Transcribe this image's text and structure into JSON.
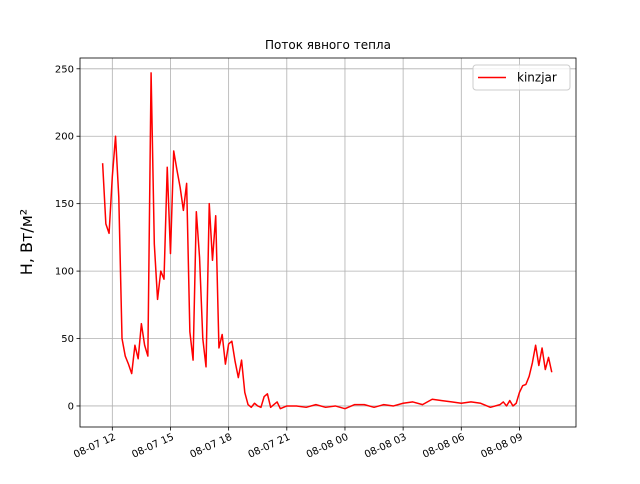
{
  "chart_data": {
    "type": "line",
    "title": "Поток явного тепла",
    "y_label": "H, Вт/м²",
    "x": [
      "08-07 11:30",
      "08-07 11:40",
      "08-07 11:50",
      "08-07 12:00",
      "08-07 12:10",
      "08-07 12:20",
      "08-07 12:30",
      "08-07 12:40",
      "08-07 12:50",
      "08-07 13:00",
      "08-07 13:10",
      "08-07 13:20",
      "08-07 13:30",
      "08-07 13:40",
      "08-07 13:50",
      "08-07 14:00",
      "08-07 14:10",
      "08-07 14:20",
      "08-07 14:30",
      "08-07 14:40",
      "08-07 14:50",
      "08-07 15:00",
      "08-07 15:10",
      "08-07 15:20",
      "08-07 15:30",
      "08-07 15:40",
      "08-07 15:50",
      "08-07 16:00",
      "08-07 16:10",
      "08-07 16:20",
      "08-07 16:30",
      "08-07 16:40",
      "08-07 16:50",
      "08-07 17:00",
      "08-07 17:10",
      "08-07 17:20",
      "08-07 17:30",
      "08-07 17:40",
      "08-07 17:50",
      "08-07 18:00",
      "08-07 18:10",
      "08-07 18:20",
      "08-07 18:30",
      "08-07 18:40",
      "08-07 18:50",
      "08-07 19:00",
      "08-07 19:10",
      "08-07 19:20",
      "08-07 19:30",
      "08-07 19:40",
      "08-07 19:50",
      "08-07 20:00",
      "08-07 20:10",
      "08-07 20:20",
      "08-07 20:30",
      "08-07 20:40",
      "08-07 21:00",
      "08-07 21:30",
      "08-07 22:00",
      "08-07 22:30",
      "08-07 23:00",
      "08-07 23:30",
      "08-08 00:00",
      "08-08 00:30",
      "08-08 01:00",
      "08-08 01:30",
      "08-08 02:00",
      "08-08 02:30",
      "08-08 03:00",
      "08-08 03:30",
      "08-08 04:00",
      "08-08 04:30",
      "08-08 05:00",
      "08-08 05:30",
      "08-08 06:00",
      "08-08 06:30",
      "08-08 07:00",
      "08-08 07:30",
      "08-08 08:00",
      "08-08 08:10",
      "08-08 08:20",
      "08-08 08:30",
      "08-08 08:40",
      "08-08 08:50",
      "08-08 09:00",
      "08-08 09:10",
      "08-08 09:20",
      "08-08 09:30",
      "08-08 09:40",
      "08-08 09:50",
      "08-08 10:00",
      "08-08 10:10",
      "08-08 10:20",
      "08-08 10:30",
      "08-08 10:40"
    ],
    "series": [
      {
        "name": "kinzjar",
        "color": "#ff0000",
        "values": [
          180,
          135,
          128,
          170,
          200,
          155,
          50,
          37,
          31,
          24,
          45,
          35,
          61,
          45,
          37,
          247,
          120,
          79,
          100,
          94,
          177,
          113,
          189,
          175,
          162,
          145,
          165,
          55,
          34,
          144,
          110,
          50,
          29,
          150,
          108,
          141,
          43,
          53,
          31,
          46,
          48,
          33,
          21,
          34,
          10,
          1,
          -1,
          2,
          0,
          -1,
          7,
          9,
          -1,
          1,
          3,
          -2,
          0,
          0,
          -1,
          1,
          -1,
          0,
          -2,
          1,
          1,
          -1,
          1,
          0,
          2,
          3,
          1,
          5,
          4,
          3,
          2,
          3,
          2,
          -1,
          1,
          3,
          0,
          4,
          0,
          2,
          10,
          15,
          16,
          22,
          32,
          45,
          30,
          43,
          27,
          36,
          25
        ]
      }
    ],
    "xlim": [
      "08-07 10:20",
      "08-08 11:55"
    ],
    "xticks": [
      "08-07 12",
      "08-07 15",
      "08-07 18",
      "08-07 21",
      "08-08 00",
      "08-08 03",
      "08-08 06",
      "08-08 09"
    ],
    "ylim": [
      -15.6,
      258
    ],
    "yticks": [
      0,
      50,
      100,
      150,
      200,
      250
    ],
    "grid": true,
    "legend": "upper right"
  }
}
